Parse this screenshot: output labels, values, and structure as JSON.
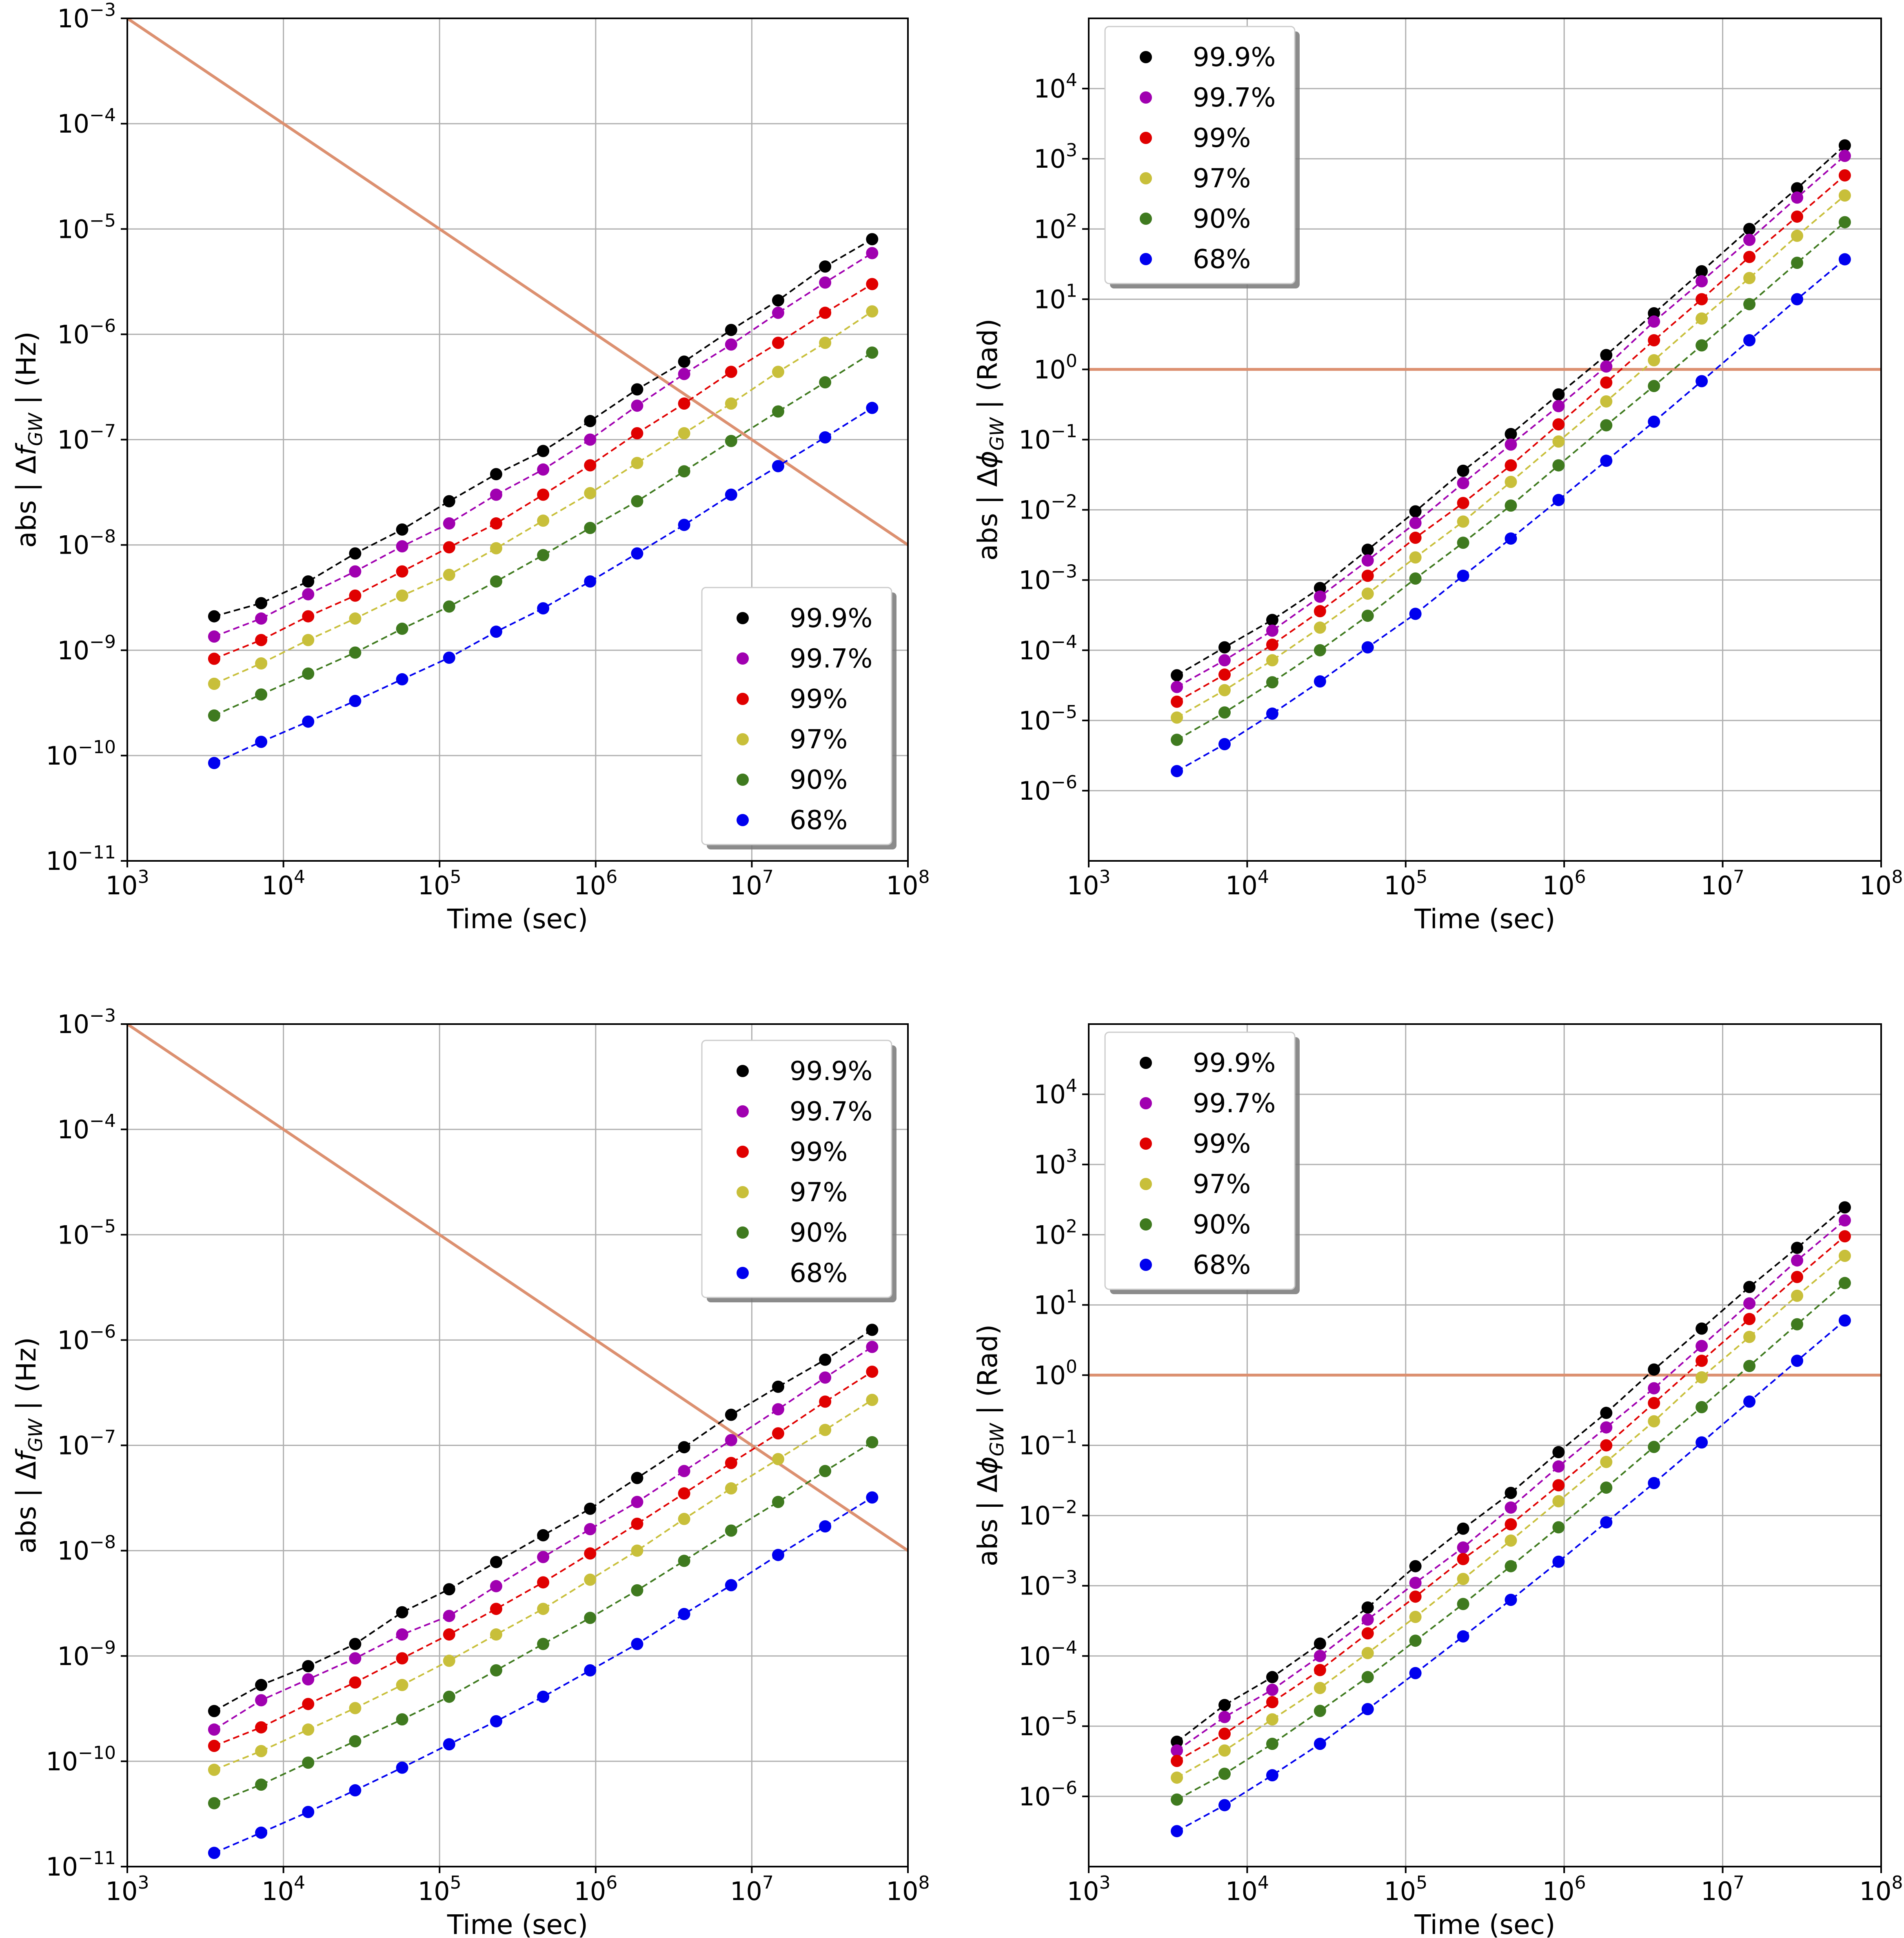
{
  "figure": {
    "background": "#ffffff"
  },
  "colors": {
    "99.9%": "#000000",
    "99.7%": "#a000b0",
    "99%": "#e00000",
    "97%": "#c8bf3a",
    "90%": "#3f7a1f",
    "68%": "#0000ee",
    "reference_line": "#dc9070",
    "grid": "#b0b0b0"
  },
  "chart_data": [
    {
      "type": "scatter",
      "panel": "top-left",
      "x_scale": "log",
      "y_scale": "log",
      "xlabel": "Time (sec)",
      "ylabel": {
        "prefix": "abs | Δ",
        "var": "f",
        "sub": "GW",
        "suffix": " |  (Hz)"
      },
      "xlim": [
        1000,
        100000000
      ],
      "ylim": [
        1e-11,
        0.001
      ],
      "x_ticks": [
        {
          "value": 1000,
          "base": "10",
          "exp": "3"
        },
        {
          "value": 10000,
          "base": "10",
          "exp": "4"
        },
        {
          "value": 100000,
          "base": "10",
          "exp": "5"
        },
        {
          "value": 1000000,
          "base": "10",
          "exp": "6"
        },
        {
          "value": 10000000,
          "base": "10",
          "exp": "7"
        },
        {
          "value": 100000000,
          "base": "10",
          "exp": "8"
        }
      ],
      "y_ticks": [
        {
          "value": 1e-11,
          "base": "10",
          "exp": "−11"
        },
        {
          "value": 1e-10,
          "base": "10",
          "exp": "−10"
        },
        {
          "value": 1e-09,
          "base": "10",
          "exp": "−9"
        },
        {
          "value": 1e-08,
          "base": "10",
          "exp": "−8"
        },
        {
          "value": 1e-07,
          "base": "10",
          "exp": "−7"
        },
        {
          "value": 1e-06,
          "base": "10",
          "exp": "−6"
        },
        {
          "value": 1e-05,
          "base": "10",
          "exp": "−5"
        },
        {
          "value": 0.0001,
          "base": "10",
          "exp": "−4"
        },
        {
          "value": 0.001,
          "base": "10",
          "exp": "−3"
        }
      ],
      "grid": true,
      "legend": {
        "position": "lower-right",
        "entries": [
          "99.9%",
          "99.7%",
          "99%",
          "97%",
          "90%",
          "68%"
        ]
      },
      "reference_line": {
        "x": [
          1000,
          100000000
        ],
        "y": [
          0.001,
          1e-08
        ]
      },
      "x": [
        3600,
        7200,
        14400,
        28800,
        57600,
        115200,
        230400,
        460800,
        921600,
        1843200,
        3686400,
        7372800,
        14745600,
        29491200,
        58982400
      ],
      "series": [
        {
          "name": "99.9%",
          "values": [
            2.1e-09,
            2.8e-09,
            4.5e-09,
            8.3e-09,
            1.4e-08,
            2.6e-08,
            4.7e-08,
            7.8e-08,
            1.5e-07,
            3e-07,
            5.5e-07,
            1.1e-06,
            2.1e-06,
            4.4e-06,
            8e-06
          ]
        },
        {
          "name": "99.7%",
          "values": [
            1.35e-09,
            2e-09,
            3.4e-09,
            5.6e-09,
            9.7e-09,
            1.6e-08,
            3e-08,
            5.2e-08,
            1e-07,
            2.1e-07,
            4.2e-07,
            8e-07,
            1.6e-06,
            3.1e-06,
            5.9e-06
          ]
        },
        {
          "name": "99%",
          "values": [
            8.3e-10,
            1.25e-09,
            2.1e-09,
            3.3e-09,
            5.6e-09,
            9.5e-09,
            1.6e-08,
            3e-08,
            5.7e-08,
            1.15e-07,
            2.2e-07,
            4.4e-07,
            8.3e-07,
            1.6e-06,
            3e-06
          ]
        },
        {
          "name": "97%",
          "values": [
            4.8e-10,
            7.5e-10,
            1.25e-09,
            2e-09,
            3.3e-09,
            5.2e-09,
            9.3e-09,
            1.7e-08,
            3.1e-08,
            6e-08,
            1.15e-07,
            2.2e-07,
            4.4e-07,
            8.3e-07,
            1.65e-06
          ]
        },
        {
          "name": "90%",
          "values": [
            2.4e-10,
            3.8e-10,
            6e-10,
            9.5e-10,
            1.6e-09,
            2.6e-09,
            4.5e-09,
            8e-09,
            1.45e-08,
            2.6e-08,
            5e-08,
            9.7e-08,
            1.85e-07,
            3.5e-07,
            6.7e-07
          ]
        },
        {
          "name": "68%",
          "values": [
            8.5e-11,
            1.35e-10,
            2.1e-10,
            3.3e-10,
            5.3e-10,
            8.5e-10,
            1.5e-09,
            2.5e-09,
            4.5e-09,
            8.3e-09,
            1.55e-08,
            3e-08,
            5.6e-08,
            1.05e-07,
            2e-07
          ]
        }
      ]
    },
    {
      "type": "scatter",
      "panel": "top-right",
      "x_scale": "log",
      "y_scale": "log",
      "xlabel": "Time (sec)",
      "ylabel": {
        "prefix": "abs | Δ",
        "var": "ϕ",
        "sub": "GW",
        "suffix": " |  (Rad)"
      },
      "xlim": [
        1000,
        100000000
      ],
      "ylim": [
        1e-07,
        100000
      ],
      "x_ticks": [
        {
          "value": 1000,
          "base": "10",
          "exp": "3"
        },
        {
          "value": 10000,
          "base": "10",
          "exp": "4"
        },
        {
          "value": 100000,
          "base": "10",
          "exp": "5"
        },
        {
          "value": 1000000,
          "base": "10",
          "exp": "6"
        },
        {
          "value": 10000000,
          "base": "10",
          "exp": "7"
        },
        {
          "value": 100000000,
          "base": "10",
          "exp": "8"
        }
      ],
      "y_ticks": [
        {
          "value": 1e-06,
          "base": "10",
          "exp": "−6"
        },
        {
          "value": 1e-05,
          "base": "10",
          "exp": "−5"
        },
        {
          "value": 0.0001,
          "base": "10",
          "exp": "−4"
        },
        {
          "value": 0.001,
          "base": "10",
          "exp": "−3"
        },
        {
          "value": 0.01,
          "base": "10",
          "exp": "−2"
        },
        {
          "value": 0.1,
          "base": "10",
          "exp": "−1"
        },
        {
          "value": 1,
          "base": "10",
          "exp": "0"
        },
        {
          "value": 10,
          "base": "10",
          "exp": "1"
        },
        {
          "value": 100,
          "base": "10",
          "exp": "2"
        },
        {
          "value": 1000,
          "base": "10",
          "exp": "3"
        },
        {
          "value": 10000,
          "base": "10",
          "exp": "4"
        }
      ],
      "grid": true,
      "legend": {
        "position": "upper-left",
        "entries": [
          "99.9%",
          "99.7%",
          "99%",
          "97%",
          "90%",
          "68%"
        ]
      },
      "reference_line": {
        "x": [
          1000,
          100000000
        ],
        "y": [
          1,
          1
        ]
      },
      "x": [
        3600,
        7200,
        14400,
        28800,
        57600,
        115200,
        230400,
        460800,
        921600,
        1843200,
        3686400,
        7372800,
        14745600,
        29491200,
        58982400
      ],
      "series": [
        {
          "name": "99.9%",
          "values": [
            4.4e-05,
            0.00011,
            0.00027,
            0.00077,
            0.0027,
            0.0095,
            0.036,
            0.12,
            0.44,
            1.6,
            6.3,
            25,
            100,
            380,
            1550
          ]
        },
        {
          "name": "99.7%",
          "values": [
            3e-05,
            7.2e-05,
            0.00019,
            0.00058,
            0.0019,
            0.0065,
            0.024,
            0.085,
            0.3,
            1.1,
            4.8,
            18,
            70,
            280,
            1100
          ]
        },
        {
          "name": "99%",
          "values": [
            1.85e-05,
            4.5e-05,
            0.00012,
            0.00036,
            0.00115,
            0.004,
            0.0125,
            0.043,
            0.165,
            0.65,
            2.6,
            10,
            40,
            150,
            580
          ]
        },
        {
          "name": "97%",
          "values": [
            1.1e-05,
            2.7e-05,
            7.2e-05,
            0.00021,
            0.00064,
            0.0021,
            0.0068,
            0.025,
            0.094,
            0.35,
            1.35,
            5.3,
            20,
            80,
            300
          ]
        },
        {
          "name": "90%",
          "values": [
            5.3e-06,
            1.3e-05,
            3.5e-05,
            0.0001,
            0.00031,
            0.00105,
            0.0034,
            0.0115,
            0.043,
            0.16,
            0.58,
            2.2,
            8.5,
            33,
            125
          ]
        },
        {
          "name": "68%",
          "values": [
            1.9e-06,
            4.6e-06,
            1.25e-05,
            3.6e-05,
            0.00011,
            0.00033,
            0.00115,
            0.0039,
            0.0138,
            0.05,
            0.18,
            0.68,
            2.6,
            10,
            37
          ]
        }
      ]
    },
    {
      "type": "scatter",
      "panel": "bottom-left",
      "x_scale": "log",
      "y_scale": "log",
      "xlabel": "Time (sec)",
      "ylabel": {
        "prefix": "abs | Δ",
        "var": "f",
        "sub": "GW",
        "suffix": " |  (Hz)"
      },
      "xlim": [
        1000,
        100000000
      ],
      "ylim": [
        1e-11,
        0.001
      ],
      "x_ticks": [
        {
          "value": 1000,
          "base": "10",
          "exp": "3"
        },
        {
          "value": 10000,
          "base": "10",
          "exp": "4"
        },
        {
          "value": 100000,
          "base": "10",
          "exp": "5"
        },
        {
          "value": 1000000,
          "base": "10",
          "exp": "6"
        },
        {
          "value": 10000000,
          "base": "10",
          "exp": "7"
        },
        {
          "value": 100000000,
          "base": "10",
          "exp": "8"
        }
      ],
      "y_ticks": [
        {
          "value": 1e-11,
          "base": "10",
          "exp": "−11"
        },
        {
          "value": 1e-10,
          "base": "10",
          "exp": "−10"
        },
        {
          "value": 1e-09,
          "base": "10",
          "exp": "−9"
        },
        {
          "value": 1e-08,
          "base": "10",
          "exp": "−8"
        },
        {
          "value": 1e-07,
          "base": "10",
          "exp": "−7"
        },
        {
          "value": 1e-06,
          "base": "10",
          "exp": "−6"
        },
        {
          "value": 1e-05,
          "base": "10",
          "exp": "−5"
        },
        {
          "value": 0.0001,
          "base": "10",
          "exp": "−4"
        },
        {
          "value": 0.001,
          "base": "10",
          "exp": "−3"
        }
      ],
      "grid": true,
      "legend": {
        "position": "upper-right",
        "entries": [
          "99.9%",
          "99.7%",
          "99%",
          "97%",
          "90%",
          "68%"
        ]
      },
      "reference_line": {
        "x": [
          1000,
          100000000
        ],
        "y": [
          0.001,
          1e-08
        ]
      },
      "x": [
        3600,
        7200,
        14400,
        28800,
        57600,
        115200,
        230400,
        460800,
        921600,
        1843200,
        3686400,
        7372800,
        14745600,
        29491200,
        58982400
      ],
      "series": [
        {
          "name": "99.9%",
          "values": [
            3e-10,
            5.3e-10,
            8e-10,
            1.3e-09,
            2.6e-09,
            4.3e-09,
            7.8e-09,
            1.4e-08,
            2.5e-08,
            4.9e-08,
            9.6e-08,
            1.95e-07,
            3.6e-07,
            6.5e-07,
            1.25e-06
          ]
        },
        {
          "name": "99.7%",
          "values": [
            2e-10,
            3.8e-10,
            6e-10,
            9.5e-10,
            1.6e-09,
            2.4e-09,
            4.6e-09,
            8.7e-09,
            1.6e-08,
            2.9e-08,
            5.7e-08,
            1.12e-07,
            2.2e-07,
            4.4e-07,
            8.6e-07
          ]
        },
        {
          "name": "99%",
          "values": [
            1.4e-10,
            2.1e-10,
            3.5e-10,
            5.6e-10,
            9.5e-10,
            1.6e-09,
            2.8e-09,
            5e-09,
            9.4e-09,
            1.8e-08,
            3.5e-08,
            6.8e-08,
            1.3e-07,
            2.6e-07,
            5e-07
          ]
        },
        {
          "name": "97%",
          "values": [
            8.3e-11,
            1.25e-10,
            2e-10,
            3.2e-10,
            5.3e-10,
            9e-10,
            1.6e-09,
            2.8e-09,
            5.3e-09,
            1e-08,
            2e-08,
            3.9e-08,
            7.4e-08,
            1.4e-07,
            2.7e-07
          ]
        },
        {
          "name": "90%",
          "values": [
            4e-11,
            6e-11,
            9.7e-11,
            1.55e-10,
            2.5e-10,
            4.1e-10,
            7.3e-10,
            1.3e-09,
            2.3e-09,
            4.2e-09,
            8e-09,
            1.55e-08,
            2.9e-08,
            5.7e-08,
            1.07e-07
          ]
        },
        {
          "name": "68%",
          "values": [
            1.35e-11,
            2.1e-11,
            3.3e-11,
            5.3e-11,
            8.7e-11,
            1.45e-10,
            2.4e-10,
            4.1e-10,
            7.3e-10,
            1.3e-09,
            2.5e-09,
            4.7e-09,
            9.1e-09,
            1.7e-08,
            3.2e-08
          ]
        }
      ]
    },
    {
      "type": "scatter",
      "panel": "bottom-right",
      "x_scale": "log",
      "y_scale": "log",
      "xlabel": "Time (sec)",
      "ylabel": {
        "prefix": "abs | Δ",
        "var": "ϕ",
        "sub": "GW",
        "suffix": " |  (Rad)"
      },
      "xlim": [
        1000,
        100000000
      ],
      "ylim": [
        1e-07,
        100000
      ],
      "x_ticks": [
        {
          "value": 1000,
          "base": "10",
          "exp": "3"
        },
        {
          "value": 10000,
          "base": "10",
          "exp": "4"
        },
        {
          "value": 100000,
          "base": "10",
          "exp": "5"
        },
        {
          "value": 1000000,
          "base": "10",
          "exp": "6"
        },
        {
          "value": 10000000,
          "base": "10",
          "exp": "7"
        },
        {
          "value": 100000000,
          "base": "10",
          "exp": "8"
        }
      ],
      "y_ticks": [
        {
          "value": 1e-06,
          "base": "10",
          "exp": "−6"
        },
        {
          "value": 1e-05,
          "base": "10",
          "exp": "−5"
        },
        {
          "value": 0.0001,
          "base": "10",
          "exp": "−4"
        },
        {
          "value": 0.001,
          "base": "10",
          "exp": "−3"
        },
        {
          "value": 0.01,
          "base": "10",
          "exp": "−2"
        },
        {
          "value": 0.1,
          "base": "10",
          "exp": "−1"
        },
        {
          "value": 1,
          "base": "10",
          "exp": "0"
        },
        {
          "value": 10,
          "base": "10",
          "exp": "1"
        },
        {
          "value": 100,
          "base": "10",
          "exp": "2"
        },
        {
          "value": 1000,
          "base": "10",
          "exp": "3"
        },
        {
          "value": 10000,
          "base": "10",
          "exp": "4"
        }
      ],
      "grid": true,
      "legend": {
        "position": "upper-left",
        "entries": [
          "99.9%",
          "99.7%",
          "99%",
          "97%",
          "90%",
          "68%"
        ]
      },
      "reference_line": {
        "x": [
          1000,
          100000000
        ],
        "y": [
          1,
          1
        ]
      },
      "x": [
        3600,
        7200,
        14400,
        28800,
        57600,
        115200,
        230400,
        460800,
        921600,
        1843200,
        3686400,
        7372800,
        14745600,
        29491200,
        58982400
      ],
      "series": [
        {
          "name": "99.9%",
          "values": [
            6e-06,
            2e-05,
            5e-05,
            0.00015,
            0.00049,
            0.0019,
            0.0065,
            0.021,
            0.08,
            0.29,
            1.2,
            4.6,
            18,
            65,
            245
          ]
        },
        {
          "name": "99.7%",
          "values": [
            4.5e-06,
            1.35e-05,
            3.3e-05,
            0.0001,
            0.00033,
            0.0011,
            0.0035,
            0.013,
            0.05,
            0.18,
            0.65,
            2.6,
            10.5,
            43,
            160
          ]
        },
        {
          "name": "99%",
          "values": [
            3.2e-06,
            7.8e-06,
            2.2e-05,
            6.3e-05,
            0.00021,
            0.0007,
            0.0024,
            0.0075,
            0.027,
            0.1,
            0.4,
            1.6,
            6.3,
            25,
            95
          ]
        },
        {
          "name": "97%",
          "values": [
            1.85e-06,
            4.5e-06,
            1.25e-05,
            3.5e-05,
            0.00011,
            0.00036,
            0.00125,
            0.0044,
            0.016,
            0.058,
            0.22,
            0.93,
            3.5,
            13.5,
            50
          ]
        },
        {
          "name": "90%",
          "values": [
            9e-07,
            2.1e-06,
            5.6e-06,
            1.65e-05,
            5e-05,
            0.000165,
            0.00055,
            0.0019,
            0.0068,
            0.025,
            0.095,
            0.35,
            1.35,
            5.3,
            20.5
          ]
        },
        {
          "name": "68%",
          "values": [
            3.2e-07,
            7.5e-07,
            2e-06,
            5.6e-06,
            1.75e-05,
            5.7e-05,
            0.00019,
            0.00063,
            0.0022,
            0.008,
            0.029,
            0.11,
            0.42,
            1.6,
            6.0
          ]
        }
      ]
    }
  ]
}
